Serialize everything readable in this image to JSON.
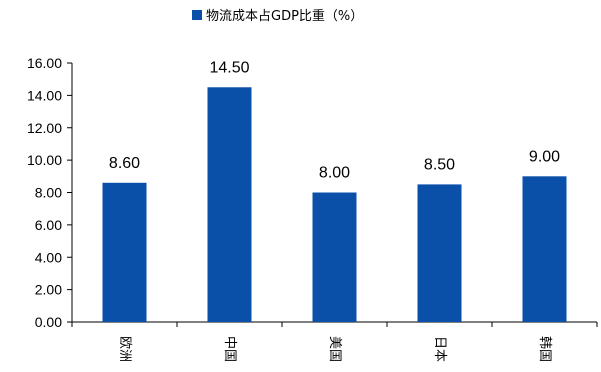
{
  "chart_data": {
    "type": "bar",
    "title": "",
    "xlabel": "",
    "ylabel": "",
    "categories": [
      "欧洲",
      "中国",
      "美国",
      "日本",
      "韩国"
    ],
    "series": [
      {
        "name": "物流成本占GDP比重（%）",
        "values": [
          8.6,
          14.5,
          8.0,
          8.5,
          9.0
        ]
      }
    ],
    "data_labels": [
      "8.60",
      "14.50",
      "8.00",
      "8.50",
      "9.00"
    ],
    "ylim": [
      0,
      16
    ],
    "yticks": [
      "0.00",
      "2.00",
      "4.00",
      "6.00",
      "8.00",
      "10.00",
      "12.00",
      "14.00",
      "16.00"
    ],
    "grid": false,
    "legend_position": "top",
    "bar_color": "#0A4FA8"
  }
}
